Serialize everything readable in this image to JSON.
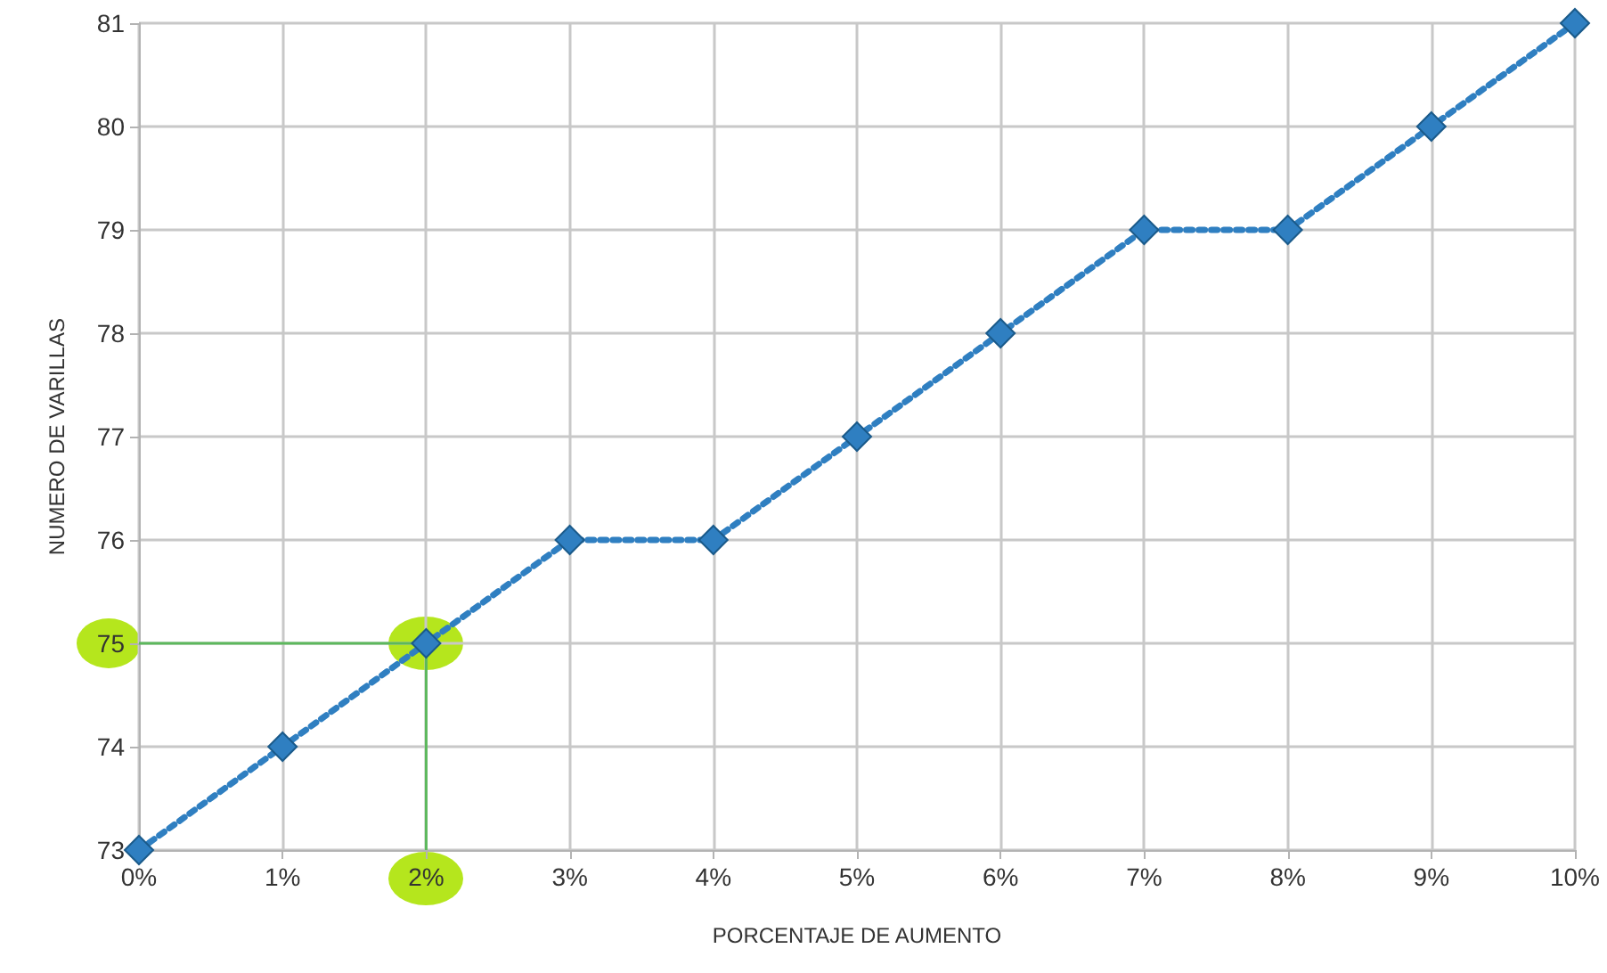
{
  "chart_data": {
    "type": "line",
    "xlabel": "PORCENTAJE DE AUMENTO",
    "ylabel": "NUMERO DE VARILLAS",
    "x": [
      0,
      1,
      2,
      3,
      4,
      5,
      6,
      7,
      8,
      9,
      10
    ],
    "series": [
      {
        "color": "#2f7fc1",
        "values": [
          73,
          74,
          75,
          76,
          76,
          77,
          78,
          79,
          79,
          80,
          81
        ]
      }
    ],
    "xlim": [
      0,
      10
    ],
    "xticks": [
      {
        "value": 0,
        "label": "0%"
      },
      {
        "value": 1,
        "label": "1%"
      },
      {
        "value": 2,
        "label": "2%"
      },
      {
        "value": 3,
        "label": "3%"
      },
      {
        "value": 4,
        "label": "4%"
      },
      {
        "value": 5,
        "label": "5%"
      },
      {
        "value": 6,
        "label": "6%"
      },
      {
        "value": 7,
        "label": "7%"
      },
      {
        "value": 8,
        "label": "8%"
      },
      {
        "value": 9,
        "label": "9%"
      },
      {
        "value": 10,
        "label": "10%"
      }
    ],
    "ylim": [
      73,
      81
    ],
    "yticks": [
      73,
      74,
      75,
      76,
      77,
      78,
      79,
      80,
      81
    ],
    "ref_lines": [
      {
        "axis": "y",
        "value": 75,
        "color": "#5cb85c"
      },
      {
        "axis": "x",
        "value": 2,
        "color": "#5cb85c"
      }
    ],
    "grid": true,
    "marker": "diamond",
    "line_style": "dotted"
  }
}
